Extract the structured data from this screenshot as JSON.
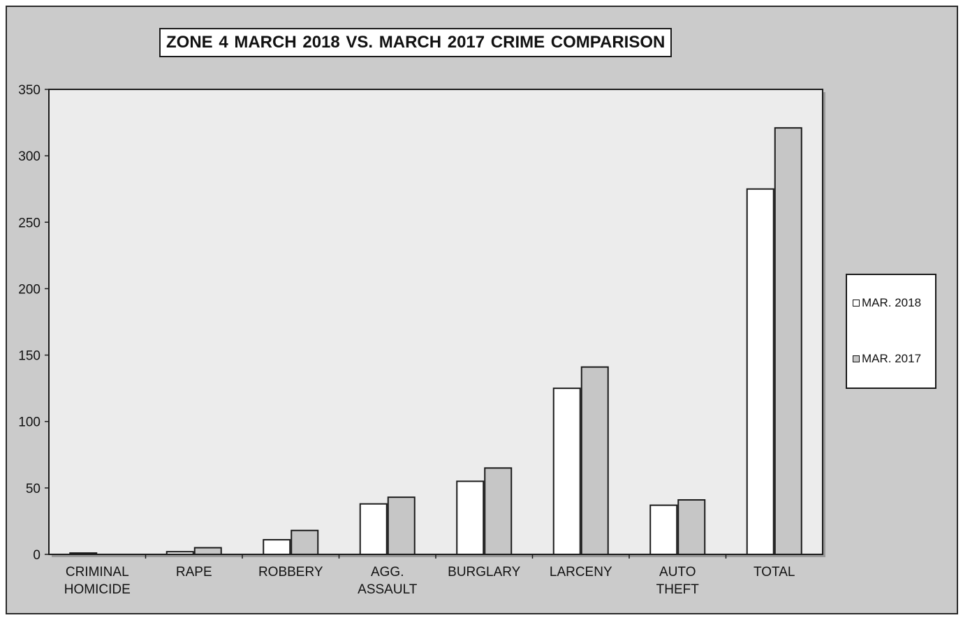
{
  "colors": {
    "frame_bg": "#cbcbcb",
    "plot_bg": "#ececec",
    "bar_2018": "#ffffff",
    "bar_2017": "#c6c6c6",
    "outline": "#1a1a1a"
  },
  "chart_data": {
    "type": "bar",
    "title": "ZONE 4  MARCH 2018 VS. MARCH 2017 CRIME COMPARISON",
    "xlabel": "",
    "ylabel": "",
    "ylim": [
      0,
      350
    ],
    "yticks": [
      "0",
      "50",
      "100",
      "150",
      "200",
      "250",
      "300",
      "350"
    ],
    "categories": [
      [
        "CRIMINAL",
        "HOMICIDE"
      ],
      [
        "RAPE"
      ],
      [
        "ROBBERY"
      ],
      [
        "AGG.",
        "ASSAULT"
      ],
      [
        "BURGLARY"
      ],
      [
        "LARCENY"
      ],
      [
        "AUTO",
        "THEFT"
      ],
      [
        "TOTAL"
      ]
    ],
    "series": [
      {
        "name": "MAR. 2018",
        "values": [
          1,
          2,
          11,
          38,
          55,
          125,
          37,
          275
        ]
      },
      {
        "name": "MAR. 2017",
        "values": [
          0,
          5,
          18,
          43,
          65,
          141,
          41,
          321
        ]
      }
    ],
    "grid": false,
    "legend_position": "right"
  }
}
